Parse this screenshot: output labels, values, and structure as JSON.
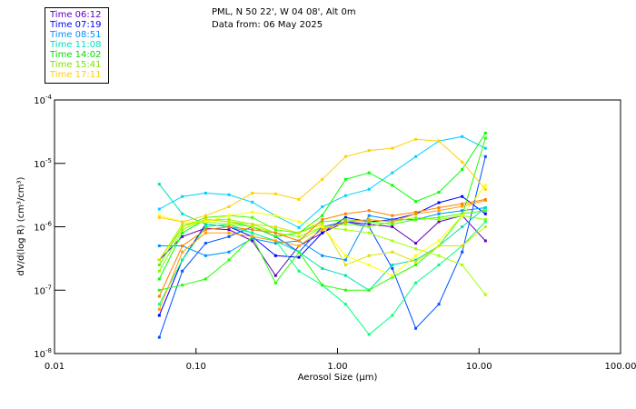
{
  "header": {
    "location": "PML, N 50 22', W 04 08', Alt 0m",
    "date_line": "Data from: 06 May 2025"
  },
  "legend": [
    {
      "label": "Time 06:12",
      "color": "#6000c0"
    },
    {
      "label": "Time 07:19",
      "color": "#0000ff"
    },
    {
      "label": "Time 08:51",
      "color": "#0090ff"
    },
    {
      "label": "Time 11:08",
      "color": "#00e0c0"
    },
    {
      "label": "Time 14:02",
      "color": "#00e000"
    },
    {
      "label": "Time 15:41",
      "color": "#80e000"
    },
    {
      "label": "Time 17:11",
      "color": "#ffd000"
    }
  ],
  "chart_data": {
    "type": "line",
    "xscale": "log",
    "yscale": "log",
    "xlim": [
      0.01,
      100
    ],
    "ylim": [
      1e-08,
      0.0001
    ],
    "xlabel": "Aerosol Size (µm)",
    "ylabel": "dV/d(log R) (cm³/cm³)",
    "xticks": [
      "0.01",
      "0.10",
      "1.00",
      "10.00",
      "100.00"
    ],
    "yticks": [
      {
        "base": "10",
        "exp": "-4",
        "value": 0.0001
      },
      {
        "base": "10",
        "exp": "-5",
        "value": 1e-05
      },
      {
        "base": "10",
        "exp": "-6",
        "value": 1e-06
      },
      {
        "base": "10",
        "exp": "-7",
        "value": 1e-07
      },
      {
        "base": "10",
        "exp": "-8",
        "value": 1e-08
      }
    ],
    "x": [
      0.055,
      0.08,
      0.117,
      0.171,
      0.25,
      0.365,
      0.534,
      0.78,
      1.14,
      1.67,
      2.44,
      3.57,
      5.2,
      7.6,
      11.1
    ],
    "series": [
      {
        "color": "#6000c0",
        "values": [
          3e-07,
          7e-07,
          9.5e-07,
          9e-07,
          6e-07,
          1.7e-07,
          5e-07,
          8e-07,
          1.2e-06,
          1.1e-06,
          1e-06,
          5.5e-07,
          1.2e-06,
          1.5e-06,
          6e-07
        ]
      },
      {
        "color": "#0000ff",
        "values": [
          4e-08,
          3e-07,
          1.1e-06,
          1e-06,
          7e-07,
          3.5e-07,
          3.3e-07,
          8e-07,
          1.4e-06,
          1.2e-06,
          1.3e-06,
          1.6e-06,
          2.4e-06,
          3e-06,
          1.6e-06
        ]
      },
      {
        "color": "#0050ff",
        "values": [
          1.8e-08,
          2e-07,
          5.5e-07,
          7e-07,
          1e-06,
          7e-07,
          4e-07,
          1e-06,
          1.2e-06,
          1e-06,
          2.2e-07,
          2.5e-08,
          6e-08,
          4e-07,
          1.28e-05
        ]
      },
      {
        "color": "#0090ff",
        "values": [
          5e-07,
          5e-07,
          3.5e-07,
          4e-07,
          6.5e-07,
          5.5e-07,
          6e-07,
          3.5e-07,
          3e-07,
          1.5e-06,
          1.3e-06,
          1.3e-06,
          1.6e-06,
          1.8e-06,
          2e-06
        ]
      },
      {
        "color": "#00d0ff",
        "values": [
          1.9e-06,
          3e-06,
          3.4e-06,
          3.2e-06,
          2.45e-06,
          1.49e-06,
          9.7e-07,
          2.07e-06,
          3.1e-06,
          3.9e-06,
          7.1e-06,
          1.28e-05,
          2.25e-05,
          2.65e-05,
          1.73e-05
        ]
      },
      {
        "color": "#00e0b0",
        "values": [
          4.7e-06,
          1.6e-06,
          1.1e-06,
          1e-06,
          8e-07,
          6e-07,
          4e-07,
          2.2e-07,
          1.7e-07,
          1e-07,
          2.5e-07,
          3e-07,
          5e-07,
          1e-06,
          2e-06
        ]
      },
      {
        "color": "#00ff80",
        "values": [
          6e-08,
          3e-07,
          1e-06,
          1.1e-06,
          8e-07,
          6e-07,
          2e-07,
          1.2e-07,
          6e-08,
          2e-08,
          4e-08,
          1.3e-07,
          2.5e-07,
          5e-07,
          1.2e-06
        ]
      },
      {
        "color": "#00ff00",
        "values": [
          1.5e-07,
          8e-07,
          1.3e-06,
          1.2e-06,
          1e-06,
          7e-07,
          8e-07,
          1.5e-06,
          5.6e-06,
          7.1e-06,
          4.5e-06,
          2.5e-06,
          3.5e-06,
          8e-06,
          3e-05
        ]
      },
      {
        "color": "#20ff00",
        "values": [
          1e-07,
          1.2e-07,
          1.5e-07,
          3e-07,
          7e-07,
          1.3e-07,
          4e-07,
          1.2e-07,
          1e-07,
          1e-07,
          1.6e-07,
          2.5e-07,
          5e-07,
          1.5e-06,
          2.5e-05
        ]
      },
      {
        "color": "#40ff00",
        "values": [
          2.5e-07,
          1e-06,
          1.4e-06,
          1.5e-06,
          1.4e-06,
          9e-07,
          8e-07,
          1.2e-06,
          1.3e-06,
          1.2e-06,
          1.1e-06,
          1.3e-06,
          1.4e-06,
          1.6e-06,
          1.8e-06
        ]
      },
      {
        "color": "#80ff00",
        "values": [
          2e-07,
          9e-07,
          1.3e-06,
          1.3e-06,
          1.1e-06,
          8e-07,
          6e-07,
          1e-06,
          1.1e-06,
          1e-06,
          1.2e-06,
          1.4e-06,
          1.3e-06,
          1.5e-06,
          1.3e-06
        ]
      },
      {
        "color": "#a0ff00",
        "values": [
          3e-07,
          1.1e-06,
          1.2e-06,
          1.1e-06,
          1e-06,
          8e-07,
          7e-07,
          1e-06,
          9e-07,
          8e-07,
          6e-07,
          4.5e-07,
          3.5e-07,
          2.5e-07,
          8.5e-08
        ]
      },
      {
        "color": "#e0e000",
        "values": [
          3e-07,
          1e-06,
          1.3e-06,
          1.2e-06,
          1.1e-06,
          1e-06,
          8e-07,
          1.1e-06,
          2.5e-07,
          3.5e-07,
          4e-07,
          2.8e-07,
          5e-07,
          5e-07,
          1e-06
        ]
      },
      {
        "color": "#ffff00",
        "values": [
          1.5e-06,
          1.2e-06,
          1.2e-06,
          1.5e-06,
          1.7e-06,
          1.5e-06,
          1.2e-06,
          1e-06,
          3.5e-07,
          2.5e-07,
          1.7e-07,
          3.5e-07,
          6e-07,
          1.5e-06,
          4.5e-06
        ]
      },
      {
        "color": "#ffd000",
        "values": [
          1.4e-06,
          1.2e-06,
          1.5e-06,
          2.07e-06,
          3.4e-06,
          3.3e-06,
          2.7e-06,
          5.6e-06,
          1.28e-05,
          1.6e-05,
          1.73e-05,
          2.4e-05,
          2.25e-05,
          1.05e-05,
          3.9e-06
        ]
      },
      {
        "color": "#ffa000",
        "values": [
          5e-08,
          4e-07,
          8e-07,
          8e-07,
          7e-07,
          6e-07,
          5e-07,
          9e-07,
          1.2e-06,
          1.3e-06,
          1.2e-06,
          1.6e-06,
          1.8e-06,
          2.1e-06,
          2.6e-06
        ]
      },
      {
        "color": "#ff8000",
        "values": [
          8e-08,
          5e-07,
          9e-07,
          1e-06,
          9e-07,
          8e-07,
          6e-07,
          1.3e-06,
          1.6e-06,
          1.8e-06,
          1.5e-06,
          1.7e-06,
          2e-06,
          2.3e-06,
          2.7e-06
        ]
      }
    ]
  }
}
